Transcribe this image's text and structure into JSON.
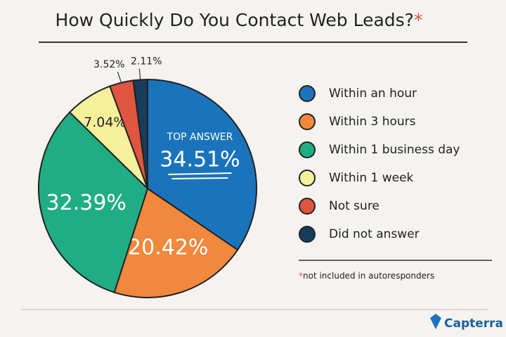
{
  "chart_data": {
    "type": "pie",
    "title": "How Quickly Do You Contact Web Leads?",
    "title_marker": "*",
    "categories": [
      "Within an hour",
      "Within 3 hours",
      "Within 1 business day",
      "Within 1 week",
      "Not sure",
      "Did not answer"
    ],
    "values": [
      34.51,
      20.42,
      32.39,
      7.04,
      3.52,
      2.11
    ],
    "value_labels": [
      "34.51%",
      "20.42%",
      "32.39%",
      "7.04%",
      "3.52%",
      "2.11%"
    ],
    "colors": [
      "#1b74bb",
      "#f0883d",
      "#21ad84",
      "#f6f09b",
      "#df5540",
      "#173c5c"
    ],
    "annotation": "TOP ANSWER",
    "footnote_marker": "*",
    "footnote": "not included in autoresponders",
    "brand": "Capterra"
  }
}
